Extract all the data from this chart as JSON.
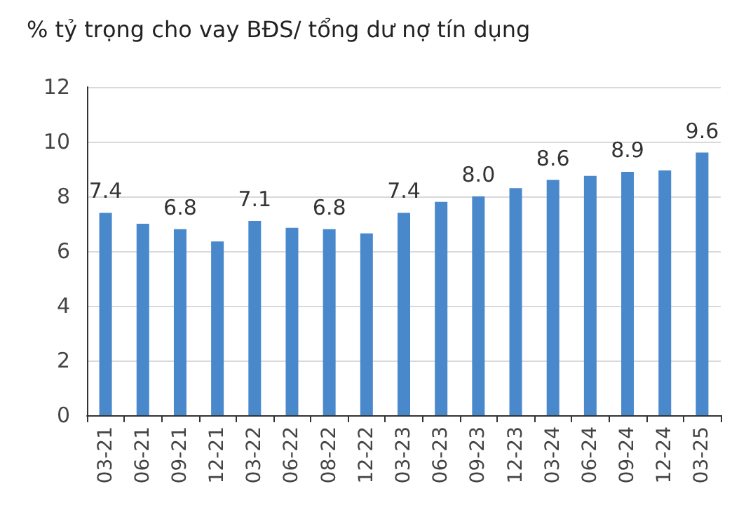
{
  "chart_data": {
    "type": "bar",
    "title": "% tỷ trọng cho vay BĐS/ tổng dư nợ tín dụng",
    "categories": [
      "03-21",
      "06-21",
      "09-21",
      "12-21",
      "03-22",
      "06-22",
      "08-22",
      "12-22",
      "03-23",
      "06-23",
      "09-23",
      "12-23",
      "03-24",
      "06-24",
      "09-24",
      "12-24",
      "03-25"
    ],
    "values": [
      7.4,
      7.0,
      6.8,
      6.35,
      7.1,
      6.85,
      6.8,
      6.65,
      7.4,
      7.8,
      8.0,
      8.3,
      8.6,
      8.75,
      8.9,
      8.95,
      9.6
    ],
    "value_labels": [
      "7.4",
      null,
      "6.8",
      null,
      "7.1",
      null,
      "6.8",
      null,
      "7.4",
      null,
      "8.0",
      null,
      "8.6",
      null,
      "8.9",
      null,
      "9.6"
    ],
    "color": "#4a88cc",
    "ylim": [
      0,
      12
    ],
    "yticks": [
      0,
      2,
      4,
      6,
      8,
      10,
      12
    ],
    "grid": "y"
  }
}
